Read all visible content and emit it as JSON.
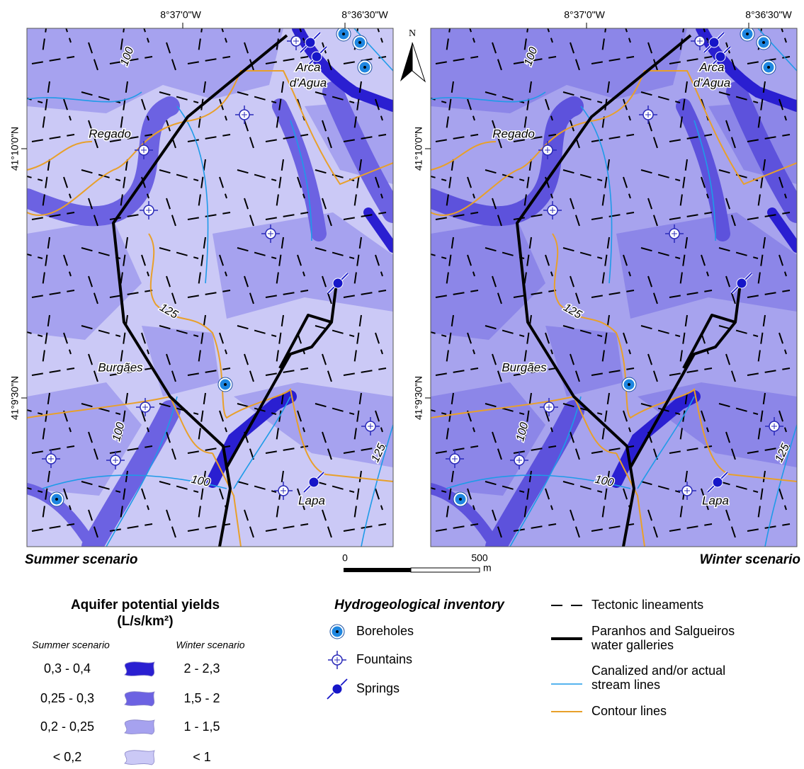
{
  "map": {
    "north_label": "N",
    "longitudes": [
      "8°37'0\"W",
      "8°36'30\"W"
    ],
    "latitudes": [
      "41°10'0\"N",
      "41°9'30\"N"
    ],
    "places": {
      "regado": "Regado",
      "arca_1": "Arca",
      "arca_2": "d'Agua",
      "burgaes": "Burgães",
      "lapa": "Lapa"
    },
    "contours": [
      "100",
      "125"
    ],
    "panels": [
      "Summer scenario",
      "Winter scenario"
    ],
    "scale": {
      "labels": [
        "0",
        "500"
      ],
      "unit": "m"
    }
  },
  "legend": {
    "yields": {
      "title": "Aquifer potential yields",
      "unit": "(L/s/km²)",
      "columns": [
        "Summer scenario",
        "Winter scenario"
      ],
      "rows": [
        [
          "0,3 - 0,4",
          "2 - 2,3"
        ],
        [
          "0,25 - 0,3",
          "1,5 - 2"
        ],
        [
          "0,2 - 0,25",
          "1 - 1,5"
        ],
        [
          "< 0,2",
          "< 1"
        ]
      ]
    },
    "inventory": {
      "title": "Hydrogeological inventory",
      "items": [
        "Boreholes",
        "Fountains",
        "Springs"
      ]
    },
    "lines": {
      "tectonic": "Tectonic lineaments",
      "galleries": [
        "Paranhos and Salgueiros",
        "water galleries"
      ],
      "streams": [
        "Canalized and/or actual",
        "stream lines"
      ],
      "contours": "Contour lines"
    }
  }
}
